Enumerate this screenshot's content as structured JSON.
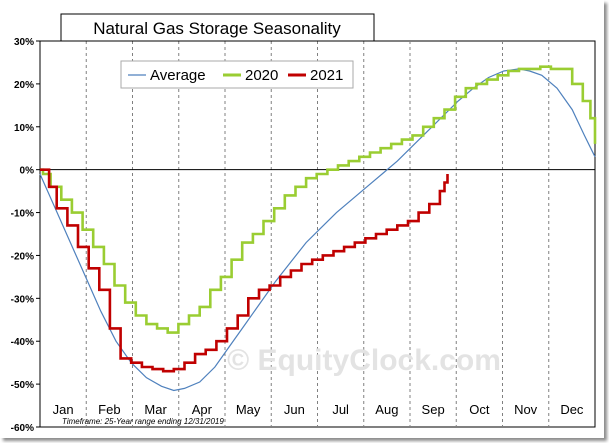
{
  "chart_data": {
    "type": "line",
    "title": "Natural Gas Storage Seasonality",
    "footnote": "Timeframe: 25-Year range ending 12/31/2019",
    "watermark": "© EquityClock.com",
    "xlabel": "",
    "ylabel": "",
    "ylim": [
      -60,
      30
    ],
    "y_ticks": [
      "30%",
      "20%",
      "10%",
      "0%",
      "-10%",
      "-20%",
      "-30%",
      "-40%",
      "-50%",
      "-60%"
    ],
    "x_range_days": [
      0,
      365
    ],
    "months": [
      "Jan",
      "Feb",
      "Mar",
      "Apr",
      "May",
      "Jun",
      "Jul",
      "Aug",
      "Sep",
      "Oct",
      "Nov",
      "Dec"
    ],
    "grid": "vertical dashed month separators",
    "legend_position": "top-left",
    "series": [
      {
        "name": "Average",
        "color": "#4f81bd",
        "style": "smooth",
        "x": [
          0,
          10,
          20,
          30,
          40,
          50,
          60,
          70,
          80,
          88,
          95,
          105,
          115,
          125,
          135,
          145,
          155,
          165,
          175,
          185,
          195,
          205,
          215,
          225,
          235,
          245,
          255,
          265,
          275,
          285,
          295,
          305,
          315,
          322,
          330,
          340,
          350,
          358,
          365
        ],
        "values": [
          -1,
          -9,
          -17,
          -25,
          -33,
          -40,
          -45,
          -48.5,
          -50.5,
          -51.5,
          -51,
          -49.5,
          -46,
          -41,
          -36,
          -31,
          -26,
          -21.5,
          -17,
          -13.5,
          -10,
          -7,
          -4,
          -1,
          2,
          5.5,
          9,
          12.5,
          16,
          19,
          21.5,
          23,
          23.5,
          23,
          22,
          19,
          14,
          8,
          3
        ]
      },
      {
        "name": "2020",
        "color": "#9acd32",
        "style": "step",
        "x": [
          0,
          2,
          7,
          14,
          21,
          28,
          35,
          42,
          49,
          56,
          63,
          70,
          77,
          84,
          91,
          98,
          105,
          112,
          119,
          126,
          133,
          140,
          147,
          154,
          161,
          168,
          175,
          182,
          189,
          196,
          203,
          210,
          217,
          224,
          231,
          238,
          245,
          252,
          259,
          266,
          273,
          280,
          287,
          294,
          301,
          308,
          315,
          322,
          329,
          336,
          343,
          350,
          357,
          362,
          365
        ],
        "values": [
          0,
          -1,
          -4,
          -7,
          -10,
          -14,
          -18,
          -22,
          -27,
          -31,
          -34,
          -36,
          -37,
          -38,
          -36,
          -34,
          -32,
          -28,
          -25,
          -21,
          -17,
          -15,
          -12,
          -9,
          -6,
          -4,
          -2,
          -1,
          0,
          1,
          2,
          3,
          4,
          5,
          6,
          7,
          8,
          10,
          12,
          14,
          17,
          19,
          20,
          21,
          22,
          23,
          23.5,
          23.5,
          24,
          23.5,
          23.5,
          20,
          16,
          12,
          6
        ]
      },
      {
        "name": "2021",
        "color": "#c00000",
        "style": "step",
        "x": [
          0,
          6,
          11,
          18,
          25,
          32,
          39,
          46,
          53,
          60,
          67,
          74,
          81,
          88,
          95,
          102,
          109,
          116,
          123,
          130,
          137,
          144,
          151,
          158,
          165,
          172,
          179,
          186,
          193,
          200,
          207,
          214,
          221,
          228,
          235,
          242,
          249,
          256,
          263,
          266,
          268
        ],
        "values": [
          0,
          -4,
          -9,
          -13,
          -18,
          -23,
          -28,
          -37,
          -44,
          -45,
          -46,
          -46.5,
          -47,
          -46.5,
          -45,
          -43,
          -42,
          -40,
          -37,
          -34,
          -30,
          -28,
          -27,
          -25,
          -23.5,
          -22,
          -21,
          -20,
          -19,
          -18,
          -17,
          -16,
          -15,
          -14,
          -13,
          -12,
          -10,
          -8,
          -5,
          -3,
          -1
        ]
      }
    ]
  }
}
